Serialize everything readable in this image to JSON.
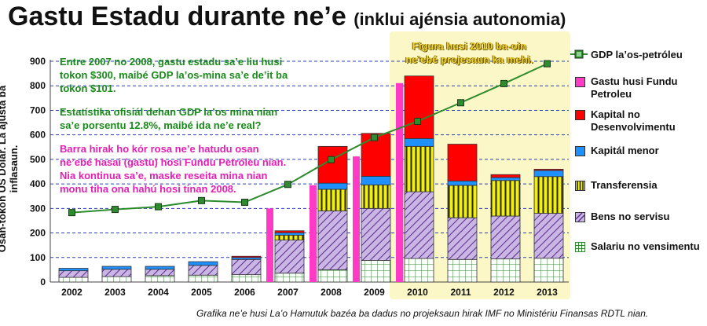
{
  "title": "Gastu Estadu durante ne’e",
  "subtitle": "(inklui ajénsia autonomia)",
  "source": "Grafika ne’e husi La’o Hamutuk bazéa ba dadus no projeksaun hirak IMF no Ministériu Finansas RDTL nian.",
  "annotations": {
    "green_1": [
      "Entre 2007 no 2008, gastu estadu sa’e liu husi",
      "tokon $300, maibé GDP la’os-mina sa’e de’it ba",
      "tokon $101."
    ],
    "green_2": [
      "Estatístika ofisiál dehan GDP la’os mina nian",
      "sa’e porsentu 12.8%, maibé ida ne’e real?"
    ],
    "pink": [
      "Barra hirak ho kór rosa ne’e hatudu osan",
      "ne’ebé hasai (gastu) hosi Fundu Petróleu nian.",
      "Nia kontinua sa’e, maske reseita mina nian",
      "monu tiha ona hahú hosi tinan 2008."
    ],
    "note_2010": [
      "Figura husi 2010 ba-oin",
      "ne’ebé projesaun ka mehi."
    ]
  },
  "colors": {
    "salaries": "#ffffff",
    "goods": "#c9b6e4",
    "transfers": "#f3f000",
    "minor": "#1e90ff",
    "development": "#ff0000",
    "petroleum_fund": "#ff3bc6",
    "gdp_line": "#2e8b2e",
    "projection_bg": "#fbf7c6"
  },
  "chart_data": {
    "type": "bar",
    "title": "Gastu Estadu durante ne’e",
    "ylabel": "Osan-tokon US Dolar. La ajusta ba inflasaun.",
    "ylim": [
      0,
      900
    ],
    "yticks": [
      0,
      100,
      200,
      300,
      400,
      500,
      600,
      700,
      800,
      900
    ],
    "grid": "horizontal dashed",
    "legend_position": "right",
    "categories": [
      "2002",
      "2003",
      "2004",
      "2005",
      "2006",
      "2007",
      "2008",
      "2009",
      "2010",
      "2011",
      "2012",
      "2013"
    ],
    "projection_from": "2010",
    "stack_series": [
      {
        "name": "Salariu no vensimentu",
        "key": "salaries",
        "values": [
          19,
          22,
          26,
          28,
          30,
          36,
          50,
          88,
          96,
          92,
          94,
          97
        ]
      },
      {
        "name": "Bens no servisu",
        "key": "goods",
        "values": [
          27,
          30,
          26,
          40,
          62,
          135,
          240,
          212,
          272,
          170,
          175,
          183
        ]
      },
      {
        "name": "Transferensia",
        "key": "transfers",
        "values": [
          0,
          0,
          0,
          0,
          0,
          20,
          88,
          96,
          185,
          132,
          145,
          150
        ]
      },
      {
        "name": "Kapitál menor",
        "key": "minor",
        "values": [
          10,
          12,
          12,
          15,
          8,
          10,
          25,
          35,
          32,
          18,
          12,
          25
        ]
      },
      {
        "name": "Kapital no Desenvolvimentu",
        "key": "development",
        "values": [
          0,
          0,
          0,
          0,
          5,
          8,
          150,
          175,
          255,
          150,
          12,
          5
        ]
      }
    ],
    "petroleum_fund": {
      "name": "Gastu husi Fundu Petroleu",
      "values": [
        0,
        0,
        0,
        0,
        0,
        300,
        395,
        512,
        811,
        0,
        0,
        0
      ]
    },
    "gdp_line": {
      "name": "GDP la’os-petróleu",
      "values": [
        283,
        296,
        307,
        332,
        325,
        398,
        499,
        589,
        655,
        731,
        809,
        890
      ]
    }
  }
}
